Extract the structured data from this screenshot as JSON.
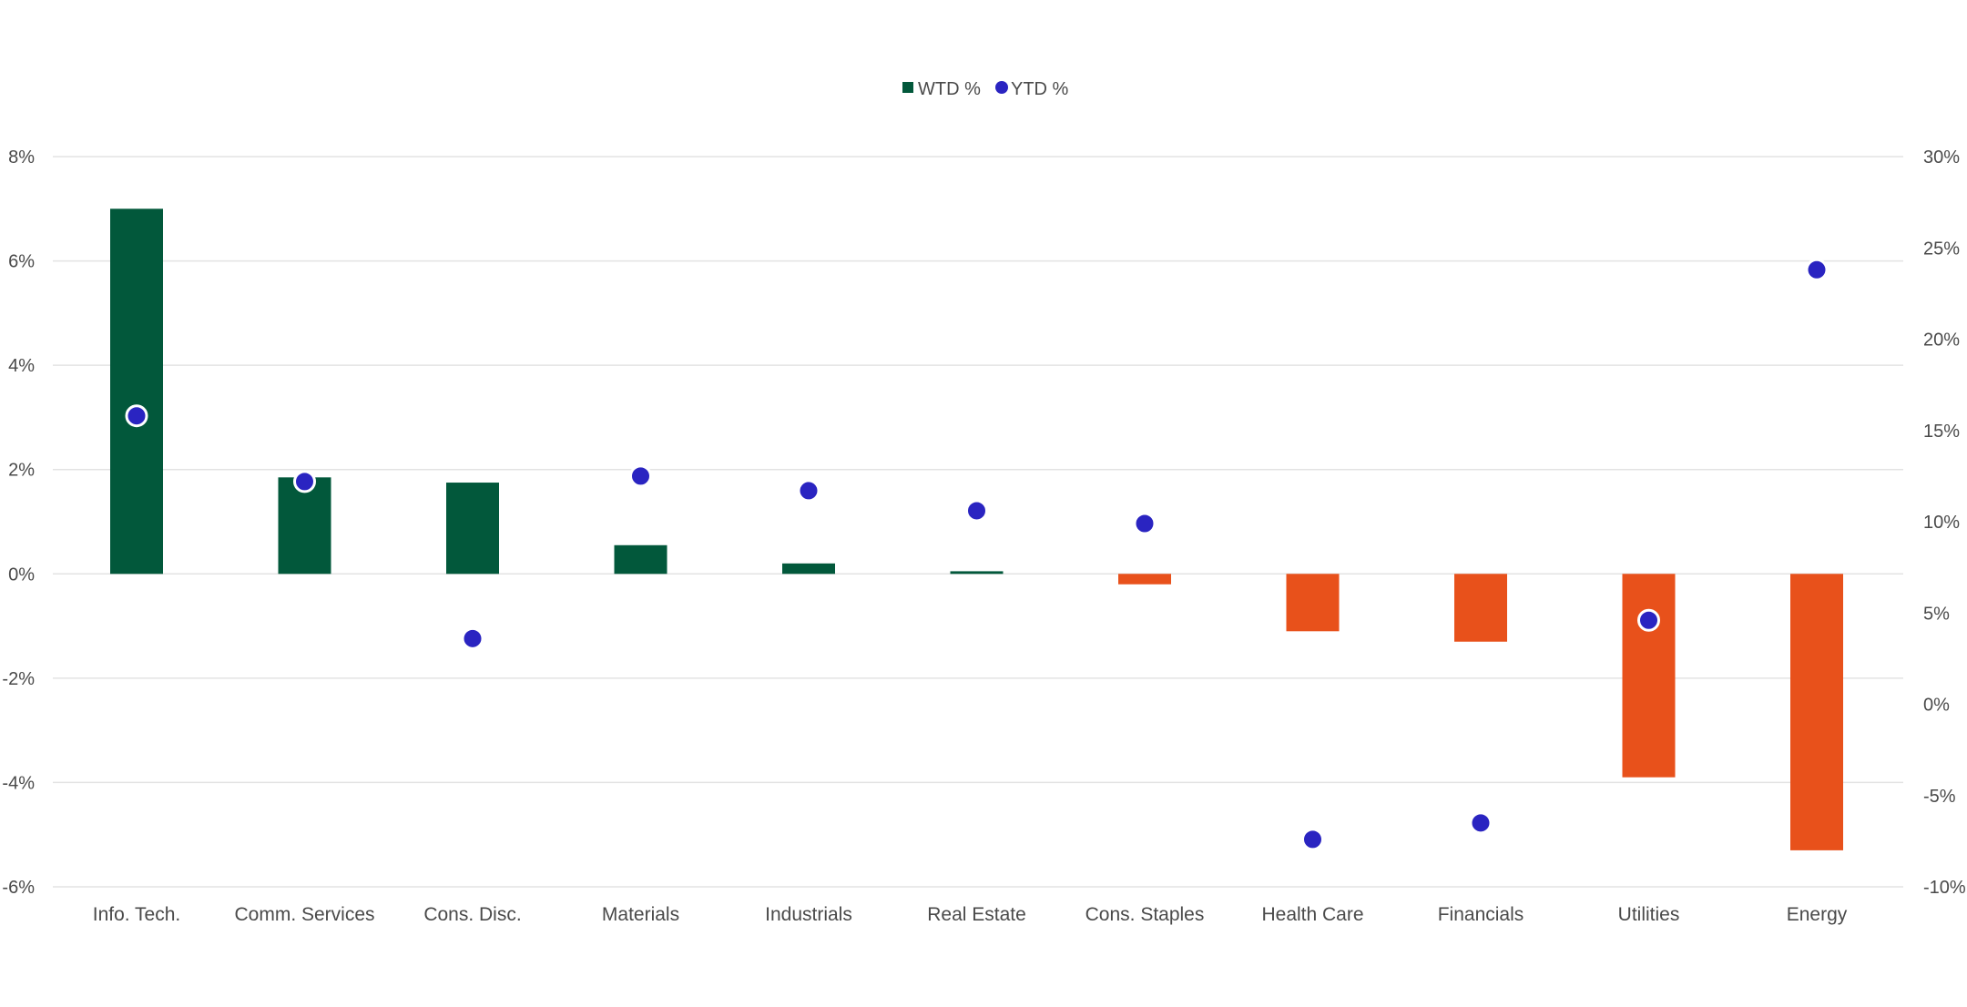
{
  "chart_data": {
    "type": "bar",
    "categories": [
      "Info. Tech.",
      "Comm. Services",
      "Cons. Disc.",
      "Materials",
      "Industrials",
      "Real Estate",
      "Cons. Staples",
      "Health Care",
      "Financials",
      "Utilities",
      "Energy"
    ],
    "series": [
      {
        "name": "WTD %",
        "type": "bar",
        "axis": "left",
        "values": [
          7.0,
          1.85,
          1.75,
          0.55,
          0.2,
          0.05,
          -0.2,
          -1.1,
          -1.3,
          -3.9,
          -5.3
        ]
      },
      {
        "name": "YTD %",
        "type": "scatter",
        "axis": "right",
        "values": [
          15.8,
          12.2,
          3.6,
          12.5,
          11.7,
          10.6,
          9.9,
          -7.4,
          -6.5,
          4.6,
          23.8
        ]
      }
    ],
    "y_left": {
      "ylim": [
        -6,
        8
      ],
      "ticks": [
        8,
        6,
        4,
        2,
        0,
        -2,
        -4,
        -6
      ],
      "tick_labels": [
        "8%",
        "6%",
        "4%",
        "2%",
        "0%",
        "-2%",
        "-4%",
        "-6%"
      ]
    },
    "y_right": {
      "ylim": [
        -10,
        30
      ],
      "ticks": [
        30,
        25,
        20,
        15,
        10,
        5,
        0,
        -5,
        -10
      ],
      "tick_labels": [
        "30%",
        "25%",
        "20%",
        "15%",
        "10%",
        "5%",
        "0%",
        "-5%",
        "-10%"
      ]
    },
    "title": "",
    "xlabel": "",
    "ylabel": "",
    "grid": true,
    "legend": "top-center",
    "colors": {
      "positive_bar": "#02583b",
      "negative_bar": "#e8511b",
      "ytd_dot": "#2a24c1",
      "dot_outline": "#ffffff"
    }
  }
}
